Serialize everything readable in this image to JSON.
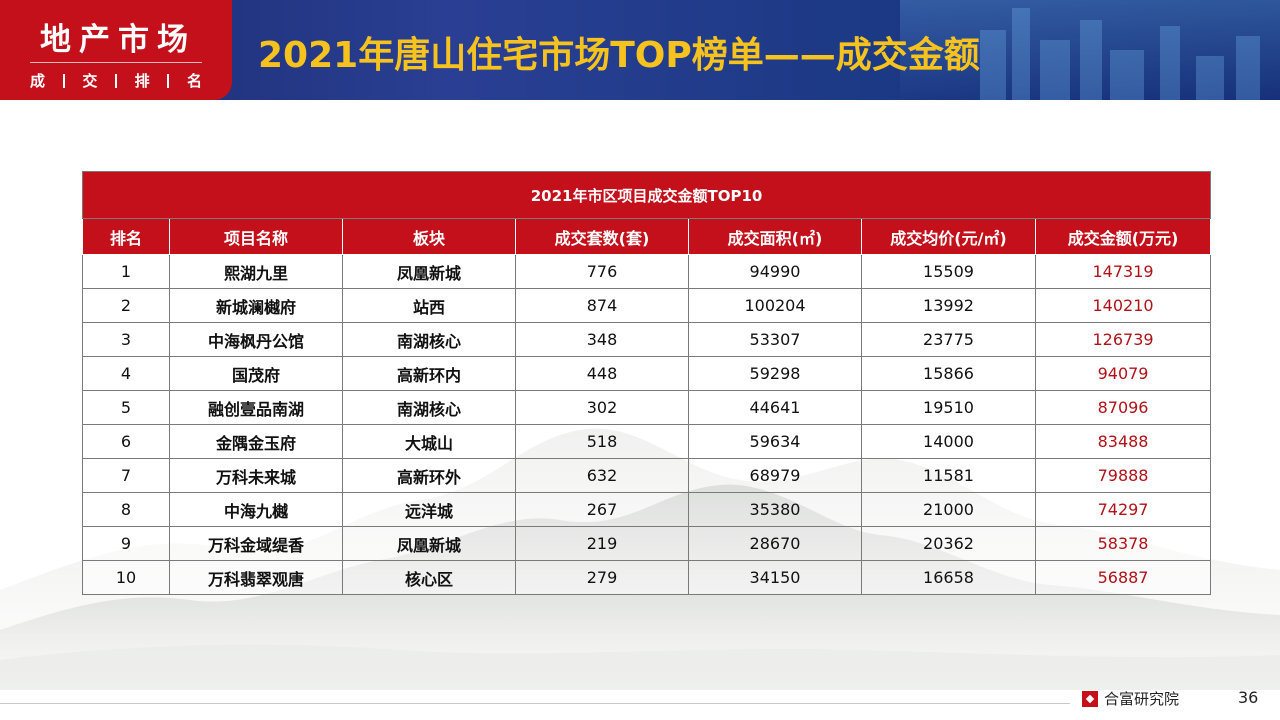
{
  "header": {
    "badge_title": "地产市场",
    "badge_sub": [
      "成",
      "交",
      "排",
      "名"
    ],
    "title": "2021年唐山住宅市场TOP榜单——成交金额"
  },
  "table": {
    "caption": "2021年市区项目成交金额TOP10",
    "columns": [
      "排名",
      "项目名称",
      "板块",
      "成交套数(套)",
      "成交面积(㎡)",
      "成交均价(元/㎡)",
      "成交金额(万元)"
    ],
    "rows": [
      {
        "rank": "1",
        "name": "熙湖九里",
        "area": "凤凰新城",
        "units": "776",
        "sqm": "94990",
        "price": "15509",
        "amount": "147319"
      },
      {
        "rank": "2",
        "name": "新城澜樾府",
        "area": "站西",
        "units": "874",
        "sqm": "100204",
        "price": "13992",
        "amount": "140210"
      },
      {
        "rank": "3",
        "name": "中海枫丹公馆",
        "area": "南湖核心",
        "units": "348",
        "sqm": "53307",
        "price": "23775",
        "amount": "126739"
      },
      {
        "rank": "4",
        "name": "国茂府",
        "area": "高新环内",
        "units": "448",
        "sqm": "59298",
        "price": "15866",
        "amount": "94079"
      },
      {
        "rank": "5",
        "name": "融创壹品南湖",
        "area": "南湖核心",
        "units": "302",
        "sqm": "44641",
        "price": "19510",
        "amount": "87096"
      },
      {
        "rank": "6",
        "name": "金隅金玉府",
        "area": "大城山",
        "units": "518",
        "sqm": "59634",
        "price": "14000",
        "amount": "83488"
      },
      {
        "rank": "7",
        "name": "万科未来城",
        "area": "高新环外",
        "units": "632",
        "sqm": "68979",
        "price": "11581",
        "amount": "79888"
      },
      {
        "rank": "8",
        "name": "中海九樾",
        "area": "远洋城",
        "units": "267",
        "sqm": "35380",
        "price": "21000",
        "amount": "74297"
      },
      {
        "rank": "9",
        "name": "万科金域缇香",
        "area": "凤凰新城",
        "units": "219",
        "sqm": "28670",
        "price": "20362",
        "amount": "58378"
      },
      {
        "rank": "10",
        "name": "万科翡翠观唐",
        "area": "核心区",
        "units": "279",
        "sqm": "34150",
        "price": "16658",
        "amount": "56887"
      }
    ]
  },
  "footer": {
    "brand": "合富研究院",
    "page": "36"
  },
  "colors": {
    "brand_red": "#c3101b",
    "title_gold": "#f6c21e",
    "banner_blue": "#1d3a86",
    "amount_red": "#b01218"
  }
}
